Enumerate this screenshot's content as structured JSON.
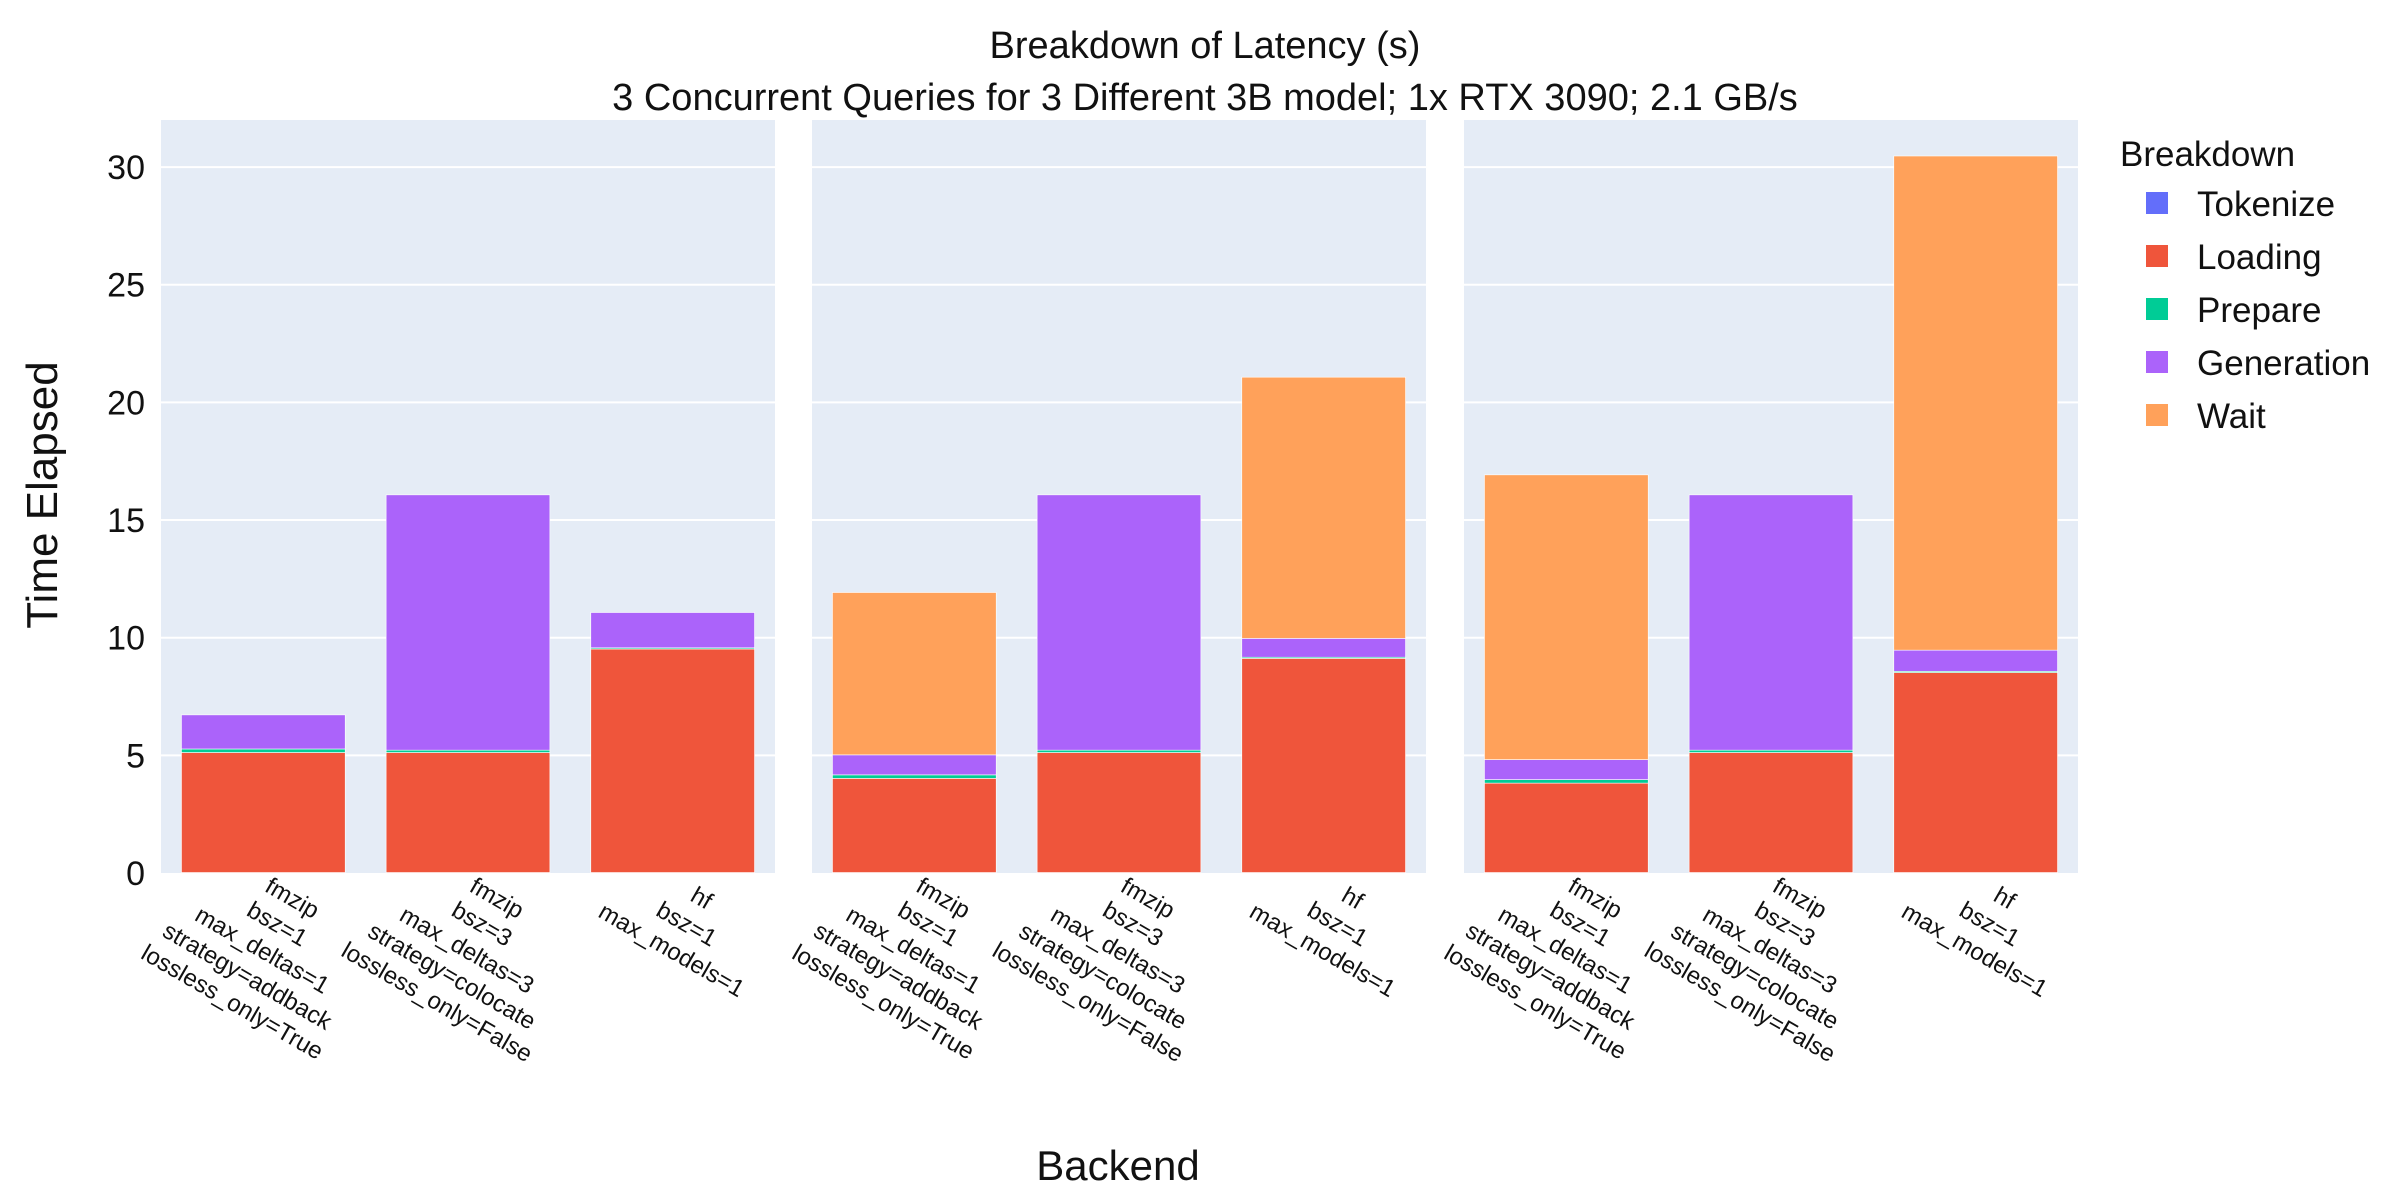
{
  "chart_data": {
    "type": "bar",
    "stacked": true,
    "title": "Breakdown of Latency (s)",
    "subtitle": "3 Concurrent Queries for 3 Different 3B model; 1x RTX 3090; 2.1 GB/s",
    "xlabel": "Backend",
    "ylabel": "Time Elapsed",
    "ylim": [
      0,
      32
    ],
    "yticks": [
      0,
      5,
      10,
      15,
      20,
      25,
      30
    ],
    "grid": true,
    "legend_title": "Breakdown",
    "legend_position": "right",
    "categories": [
      [
        "fmzip",
        "bsz=1",
        "max_deltas=1",
        "strategy=addback",
        "lossless_only=True"
      ],
      [
        "fmzip",
        "bsz=3",
        "max_deltas=3",
        "strategy=colocate",
        "lossless_only=False"
      ],
      [
        "hf",
        "bsz=1",
        "max_models=1"
      ]
    ],
    "panels": [
      {
        "series": [
          {
            "name": "Tokenize",
            "color": "#636efa",
            "values": [
              0.02,
              0.02,
              0.02
            ]
          },
          {
            "name": "Loading",
            "color": "#ef553b",
            "values": [
              5.1,
              5.1,
              9.5
            ]
          },
          {
            "name": "Prepare",
            "color": "#00cc96",
            "values": [
              0.15,
              0.1,
              0.05
            ]
          },
          {
            "name": "Generation",
            "color": "#ab63fa",
            "values": [
              1.45,
              10.85,
              1.5
            ]
          },
          {
            "name": "Wait",
            "color": "#ffa15a",
            "values": [
              0,
              0,
              0
            ]
          }
        ]
      },
      {
        "series": [
          {
            "name": "Tokenize",
            "color": "#636efa",
            "values": [
              0.02,
              0.02,
              0.02
            ]
          },
          {
            "name": "Loading",
            "color": "#ef553b",
            "values": [
              4.0,
              5.1,
              9.1
            ]
          },
          {
            "name": "Prepare",
            "color": "#00cc96",
            "values": [
              0.15,
              0.1,
              0.05
            ]
          },
          {
            "name": "Generation",
            "color": "#ab63fa",
            "values": [
              0.85,
              10.85,
              0.8
            ]
          },
          {
            "name": "Wait",
            "color": "#ffa15a",
            "values": [
              6.9,
              0,
              11.1
            ]
          }
        ]
      },
      {
        "series": [
          {
            "name": "Tokenize",
            "color": "#636efa",
            "values": [
              0.02,
              0.02,
              0.02
            ]
          },
          {
            "name": "Loading",
            "color": "#ef553b",
            "values": [
              3.8,
              5.1,
              8.5
            ]
          },
          {
            "name": "Prepare",
            "color": "#00cc96",
            "values": [
              0.15,
              0.1,
              0.05
            ]
          },
          {
            "name": "Generation",
            "color": "#ab63fa",
            "values": [
              0.85,
              10.85,
              0.9
            ]
          },
          {
            "name": "Wait",
            "color": "#ffa15a",
            "values": [
              12.1,
              0,
              21.0
            ]
          }
        ]
      }
    ]
  }
}
